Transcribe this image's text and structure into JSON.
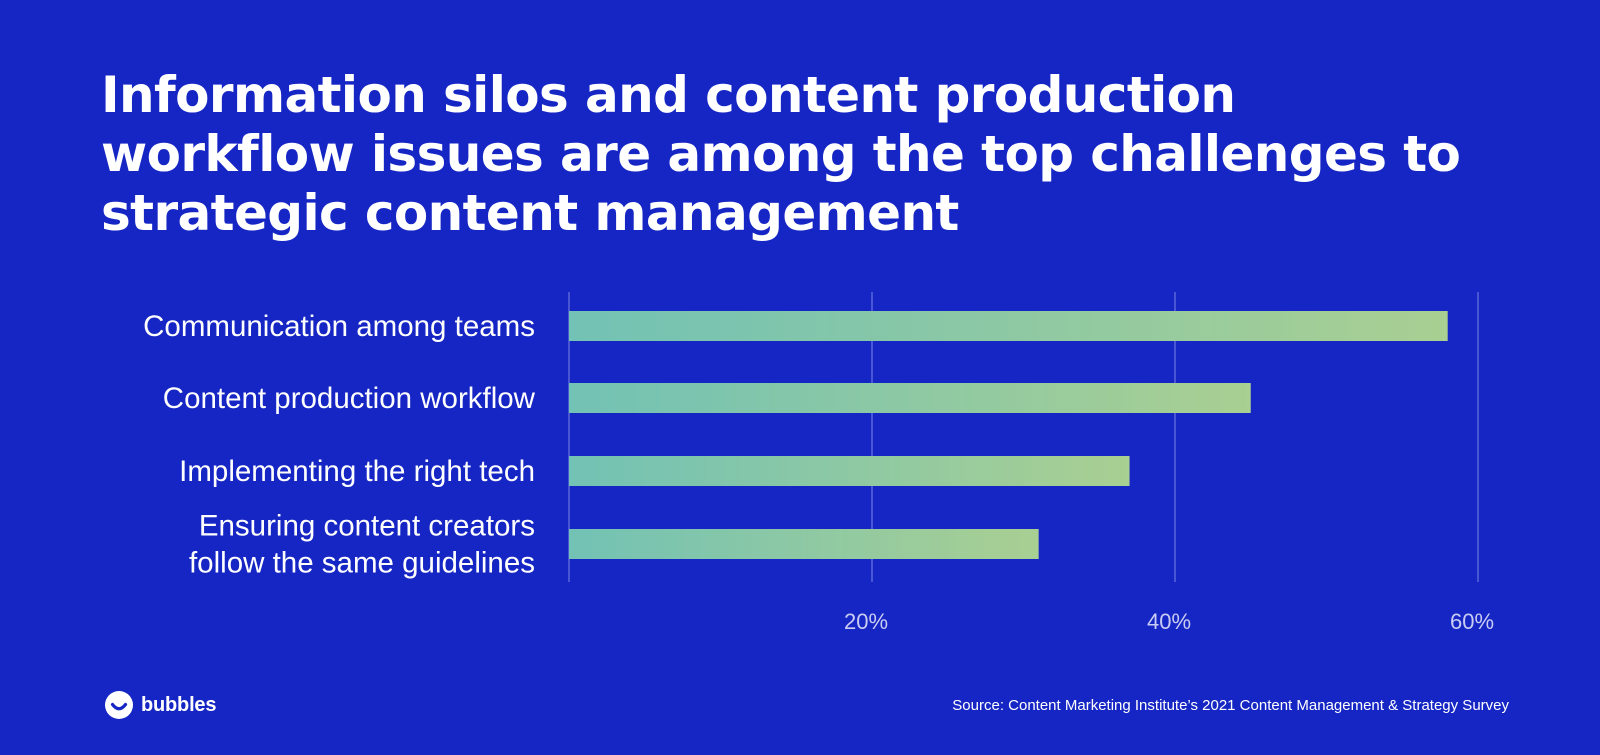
{
  "header": {
    "title": "Information silos and content production workflow issues are among the top challenges to strategic content management"
  },
  "chart_data": {
    "type": "bar",
    "orientation": "horizontal",
    "title": "Information silos and content production workflow issues are among the top challenges to strategic content management",
    "categories": [
      [
        "Communication among teams"
      ],
      [
        "Content production workflow"
      ],
      [
        "Implementing the right tech"
      ],
      [
        "Ensuring content creators",
        "follow the same guidelines"
      ]
    ],
    "values": [
      58,
      45,
      37,
      31
    ],
    "unit": "%",
    "xlim": [
      0,
      60
    ],
    "ticks": [
      0,
      20,
      40,
      60
    ],
    "tick_labels": [
      "",
      "20%",
      "40%",
      "60%"
    ],
    "grid": true,
    "xlabel": "",
    "ylabel": "",
    "bar_gradient": [
      "#72c2b5",
      "#a9cf92"
    ],
    "grid_color": "#5a66d8"
  },
  "footer": {
    "logo_text": "bubbles",
    "source": "Source: Content Marketing Institute’s 2021 Content Management & Strategy Survey"
  },
  "colors": {
    "background": "#1626c4",
    "text": "#ffffff",
    "tick_text": "#c9ccf2"
  }
}
